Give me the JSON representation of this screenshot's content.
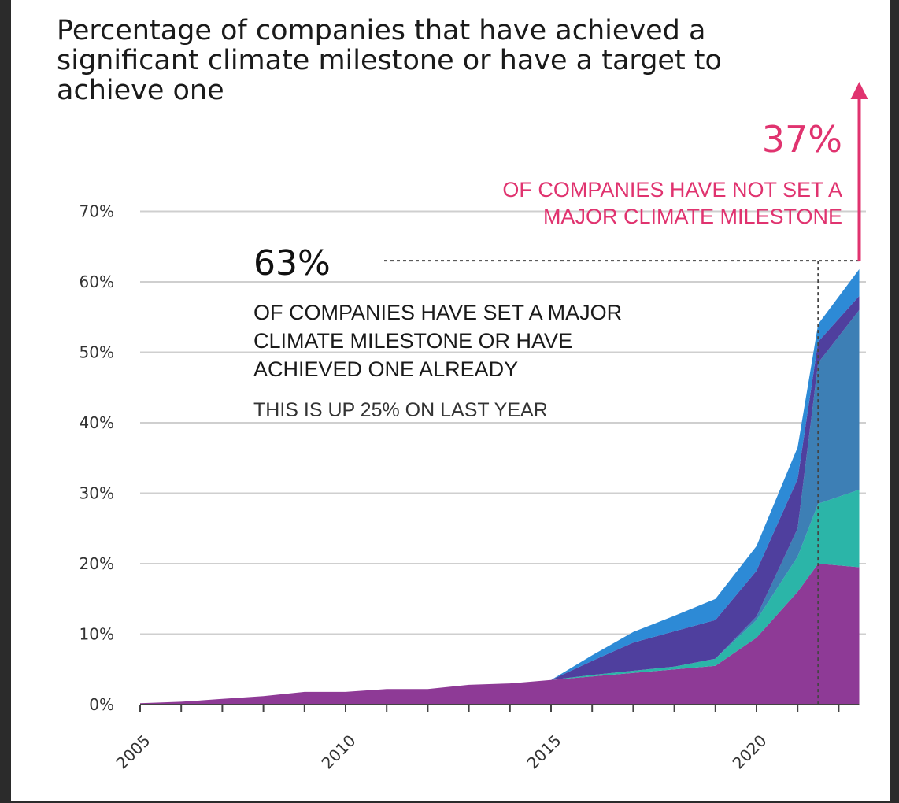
{
  "chart_data": {
    "type": "area",
    "title": "Percentage of companies that have achieved a significant climate milestone or have a target to achieve one",
    "xlabel": "",
    "ylabel": "",
    "ylim": [
      0,
      70
    ],
    "xlim": [
      2005,
      2022.5
    ],
    "y_ticks": [
      "0%",
      "10%",
      "20%",
      "30%",
      "40%",
      "50%",
      "60%",
      "70%"
    ],
    "x_tick_labels": [
      "2005",
      "2010",
      "2015",
      "2020"
    ],
    "grid": true,
    "stacked": true,
    "x": [
      2005,
      2006,
      2007,
      2008,
      2009,
      2010,
      2011,
      2012,
      2013,
      2014,
      2015,
      2016,
      2017,
      2018,
      2019,
      2020,
      2021,
      2021.5,
      2022.5
    ],
    "series": [
      {
        "color": "#8e3a96",
        "values": [
          0.2,
          0.4,
          0.8,
          1.2,
          1.8,
          1.8,
          2.2,
          2.2,
          2.8,
          3.0,
          3.5,
          4.0,
          4.5,
          5.0,
          5.5,
          9.5,
          16.0,
          20.0,
          19.5
        ]
      },
      {
        "color": "#2bb5a8",
        "values": [
          0,
          0,
          0,
          0,
          0,
          0,
          0,
          0,
          0,
          0,
          0,
          0.2,
          0.3,
          0.4,
          1.0,
          2.5,
          5.0,
          8.5,
          11.0
        ]
      },
      {
        "color": "#3d7fb5",
        "values": [
          0,
          0,
          0,
          0,
          0,
          0,
          0,
          0,
          0,
          0,
          0,
          0,
          0,
          0,
          0,
          0.5,
          4.0,
          20.0,
          25.5
        ]
      },
      {
        "color": "#4f3f9e",
        "values": [
          0,
          0,
          0,
          0,
          0,
          0,
          0,
          0,
          0,
          0,
          0,
          2.0,
          4.0,
          5.0,
          5.5,
          6.5,
          7.0,
          3.0,
          2.0
        ]
      },
      {
        "color": "#2d8ad6",
        "values": [
          0,
          0,
          0,
          0,
          0,
          0,
          0,
          0,
          0,
          0,
          0,
          0.8,
          1.5,
          2.2,
          3.0,
          3.5,
          4.5,
          2.5,
          3.8
        ]
      }
    ],
    "annotations": {
      "achieved_value": "63%",
      "achieved_text": [
        "OF COMPANIES HAVE SET A MAJOR",
        "CLIMATE MILESTONE OR HAVE",
        "ACHIEVED ONE ALREADY"
      ],
      "achieved_sub": "THIS IS UP 25% ON LAST YEAR",
      "not_set_value": "37%",
      "not_set_text": [
        "OF COMPANIES HAVE NOT SET A",
        "MAJOR CLIMATE MILESTONE"
      ],
      "reference_level": 63,
      "reference_year": 2021.5
    },
    "colors": {
      "accent_pink": "#e0336f",
      "gridline": "#cfcfcf"
    }
  }
}
